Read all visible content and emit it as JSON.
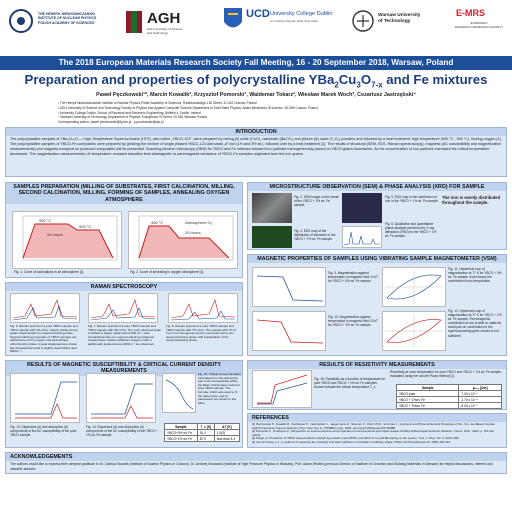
{
  "logos": {
    "ifj_line1": "THE HENRYK NIEWODNICZAŃSKI",
    "ifj_line2": "INSTITUTE OF NUCLEAR PHYSICS",
    "ifj_line3": "POLISH ACADEMY OF SCIENCES",
    "agh": "AGH",
    "agh_sub1": "AGH University of Science",
    "agh_sub2": "and Technology",
    "ucd_name": "UCD",
    "ucd_sub": "University College Dublin",
    "ucd_irish": "An Coláiste Ollscoile, Baile Átha Cliath",
    "wut_name": "Warsaw University",
    "wut_sub": "of Technology",
    "emrs": "E-MRS",
    "emrs_sub1": "EUROPEAN",
    "emrs_sub2": "MATERIALS RESEARCH SOCIETY"
  },
  "conference": "The 2018 European Materials Research Society Fall Meeting, 16 - 20 September 2018, Warsaw, Poland",
  "title_main": "Preparation and properties of polycrystalline YBa",
  "title_sub1": "2",
  "title_mid1": "Cu",
  "title_sub2": "3",
  "title_mid2": "O",
  "title_sub3": "7-x",
  "title_end": " and Fe mixtures",
  "authors": "Paweł Pęczkowski¹*, Marcin Kowalik², Krzysztof Pomorski³, Waldemar Tokarz², Wiesław Marek Woch², Cezariusz Jastrzębski⁴",
  "affiliations": [
    "¹ The Henryk Niewodniczański Institute of Nuclear Physics Polish Academy of Sciences, Radzikowskiego 152 Street, 31-342 Cracow, Poland",
    "² AGH University of Science and Technology Faculty of Physics and Applied Computer Science Department of Solid State Physics, Adam Mickiewicz 30 Avenue, 30-059 Cracow, Poland",
    "³ University College Dublin, School of Electrical and Electronic Engineering, Belfield 4, Dublin, Ireland",
    "⁴ Warsaw University of Technology Department of Physics, Koszykowa 75 Street, 00-662 Warsaw, Poland",
    "Corresponding author: pawel.peczkowski@ifj.edu.pl , p.peczkowski@wp.pl"
  ],
  "intro": {
    "title": "INTRODUCTION",
    "text": "The polycrystalline samples of YBa₂Cu₃O₇₋ₓ High-Temperature Superconductor (HTS), also called „YBCO-123\", were prepared by mixing (ii) oxide (CuO), carbonate (BaCO₃) and yttrium (iii) oxide (Y₂O₃) powders and followed by a heat treatment: high temperature (900 °C - 950 °C), flowing oxygen [1]. The polycrystalline samples of YBCO-Fe composites were prepared by grinding the mixture of single phased YBCO-123 and small „d\" iron (1% and 3% wt.), followed over by a heat treatment [1]. The results of structural (SEM, EDS, Raman spectroscopy), magnetic (AC susceptibility and magnetization measurements) and magneto-transport on produced composites will be presented. Scanning electron microscopy (SEM) for YBCO and Fe mixtures showed iron particles homogeneously placed on YBCO grains boundaries. As the concentration of iron particles increased the critical temperature decreased. The magnetization measurements LN temperature revealed transition from diamagnetic to paramagnetic behaviour of YBCO-Fe samples originated from the iron grains."
  },
  "sample_prep": {
    "title": "SAMPLES PREPARATION (MILLING OF SUBSTRATES, FIRST CALCINATION, MILLING, SECOND CALCINATION, MILLING, FORMING OF SAMPLES, ANNEALING OXYGEN ATMOSPHERE",
    "fig1_caption": "Fig. 1. Curve of calcinations in air atmosphere [1].",
    "fig2_caption": "Fig. 2. Curve of annealing in oxygen atmosphere [1]."
  },
  "micro": {
    "title": "MICROSTRUCTURE OBSERVATION (SEM) & PHASE ANALYSIS (XRD) FOR SAMPLE",
    "fig3": "Fig. 3. SEM image on the break of the YBCO + 1% wt. Fe sample.",
    "fig4": "Fig. 4. EDS map of the distribution of elements in the YBCO + 1% wt. Fe sample.",
    "fig5": "Fig. 5. EDS map of the distribution of iron in the YBCO + 1% wt. Fe sample.",
    "fig6": "Fig. 6. Qualitative and quantitative phase analysis performed by X-ray diffraction (XRD) for the YBCO + 1% wt. Fe sample.",
    "note": "The iron is evenly distributed throughout the sample."
  },
  "raman": {
    "title": "RAMAN SPECTROSCOPY",
    "fig6": "Fig. 6. Raman spectra of a pure YBCO sample and YBCO sample with 1% of Fe. Clearly visible strong peaks characteristic for superconducting phase. Superconducting properties of YBCO samples are attributed to rich in oxygen and well-defined orthorhombic phase. A peak disappearance shows the characteristic band is slightly downshifted near 500cm⁻¹.",
    "fig7": "Fig. 7. Raman spectra of a pure YBCO sample and YBCO sample with 3% of Fe. The main observed peak is shifted to higher values about 500 cm⁻¹ and characterizes the non superconducting tetragonal crystal phase. Modes of Barium Copper oxide is additionally located above 600cm⁻¹ are observed.",
    "fig8": "Fig. 8. Raman spectra of a pure YBCO sample and YBCO sample with 7% of Fe. The sample with 7% of Fe is not homogenous and is composed with a non superconducting phase with precipitation of the superconducting phase."
  },
  "magnetic": {
    "title": "MAGNETIC PROPERTIES OF SAMPLES USING VIBRATING SAMPLE MAGNETOMETER (VSM)",
    "fig9": "Fig. 9. Magnetization against temperature in magnetic field 10 kT for YBCO + 0% wt. Fe sample.",
    "fig10": "Fig. 10. Magnetization against temperature in magnetic field 10 kT for YBCO + 1% wt. Fe sample.",
    "fig11": "Fig. 11. Hysteresis loop of magnetization at 77 K for YBCO + 0% wt. Fe sample. Inset shows the contribution from interpolation.",
    "fig12": "Fig. 12. Hysteresis loop of magnetization at 77 K for YBCO + 1% wt. Fe sample. Ferromagnetic contribution of iron is able to rotate its small part on contribution to the superconducting grain current is not sufficient."
  },
  "ac": {
    "title": "RESULTS OF MAGNETIC SUSCEPTIBILITY & CRITICAL CURRENT DENSITY MEASUREMENTS",
    "fig13": "Fig. 13. Dispersive (a) and absorption (b) components of the AC susceptibility of the pure YBCO sample.",
    "fig14": "Fig. 14. Dispersive (a) and absorption (b) components of the AC susceptibility of the YBCO + 1% wt. Fe sample.",
    "fig15": "Fig. 15. Critical current densities calculated from the absorption part of AC susceptibility within the Bean critical state model for pure YBCO sample. The formula, which was used to fit the data points, and fit parameters are shown in the table.",
    "table_headers": [
      "Sample",
      "T_c [K]",
      "ΔT [K]"
    ],
    "table_rows": [
      [
        "YBCO+0% wt. Fe",
        "91.4",
        "1.0(2)"
      ],
      [
        "YBCO+1% wt. Fe",
        "87.9",
        "less than 3.4"
      ]
    ]
  },
  "resistivity": {
    "title": "RESULTS OF RESISTIVITY MEASUREMENTS",
    "intro": "Resistivity at room temperature for pure YBCO and YBCO + 1% wt. Fe sample evaluated using the van der Pauw method [1].",
    "table_headers": [
      "Sample",
      "ρ₃₀₀ [Ωm]"
    ],
    "table_rows": [
      [
        "YBCO pure",
        "7.00 x 10⁻⁶"
      ],
      [
        "YBCO + 1%wt. Fe",
        "2.70 x 10⁻⁵"
      ],
      [
        "YBCO + 3%wt. Fe",
        "8.00 x 10⁻⁵"
      ]
    ],
    "fig16": "Fig. 16. Resistivity as a function of temperature for pure YBCO and YBCO + 1% wt. Fe samples. Arrows indicate the critical temperature T_c."
  },
  "references": {
    "title": "REFERENCES",
    "items": [
      "[1] Pęczkowski P., Kowalik M., Zachariasz P., Jastrzębski C., Jaegermann Z., Szterner P., Woch W.M., Szczytko J., Synthesis and Physicochemical Properties of Nd-, Sm-, Eu-Based Cuprate High-Temperature Superconductors, Phys. Stat. Sol. A, 1700888 (1-10), 2018, doi.org/10.1002/pssa.201700888.",
      "[2] Pomorski K., Prokopow P., Perspective on superconductors and properties of unconventional spin-triplet-d-wave chirality-shifted superconductor. Elektron. Comm. Tech., 2013, p. 115-119 (2013).",
      "[3] Klegel, E. Production of YBCO superconductor sample by powder-route (PPM), and effect of Cu and Ba doping on the system. Tuoi, J. Phys. Sci. 6, 2014, 999.",
      "[4] van der Pauw, L.J., A method of measuring the resistivity and Hall coefficient on lamellae of arbitrary shape. Philips Technical Review 20, 1958, 220-224."
    ]
  },
  "ack": {
    "title": "ACKNOWLEDGEMENTS",
    "text": "The authors would like to express their deepest gratitude to Dr. Dariusz Buczek (Institute of Nuclear Physics in Cracow), Dr. Andrzej Morawski (Institute of High Pressure Physics in Warsaw), Prof. Adam Wróbel (previous Director of Institute of Ceramics and Building Materials in Warsaw) for helpful discussions, interest and valuable advices."
  },
  "chart_data": [
    {
      "type": "line",
      "title": "",
      "labels": [
        "950 °C",
        "24 hours",
        "900 °C"
      ],
      "xlabel": "",
      "ylabel": ""
    },
    {
      "type": "line",
      "title": "",
      "labels": [
        "Atmosphere O₂",
        "20 hours",
        "450 °C"
      ],
      "xlabel": "",
      "ylabel": ""
    }
  ],
  "colors": {
    "header_blue": "#1c4f9a",
    "title_blue": "#1b3d82",
    "panel_bg": "#dce8f6",
    "panel_title": "#bfd3ee"
  }
}
